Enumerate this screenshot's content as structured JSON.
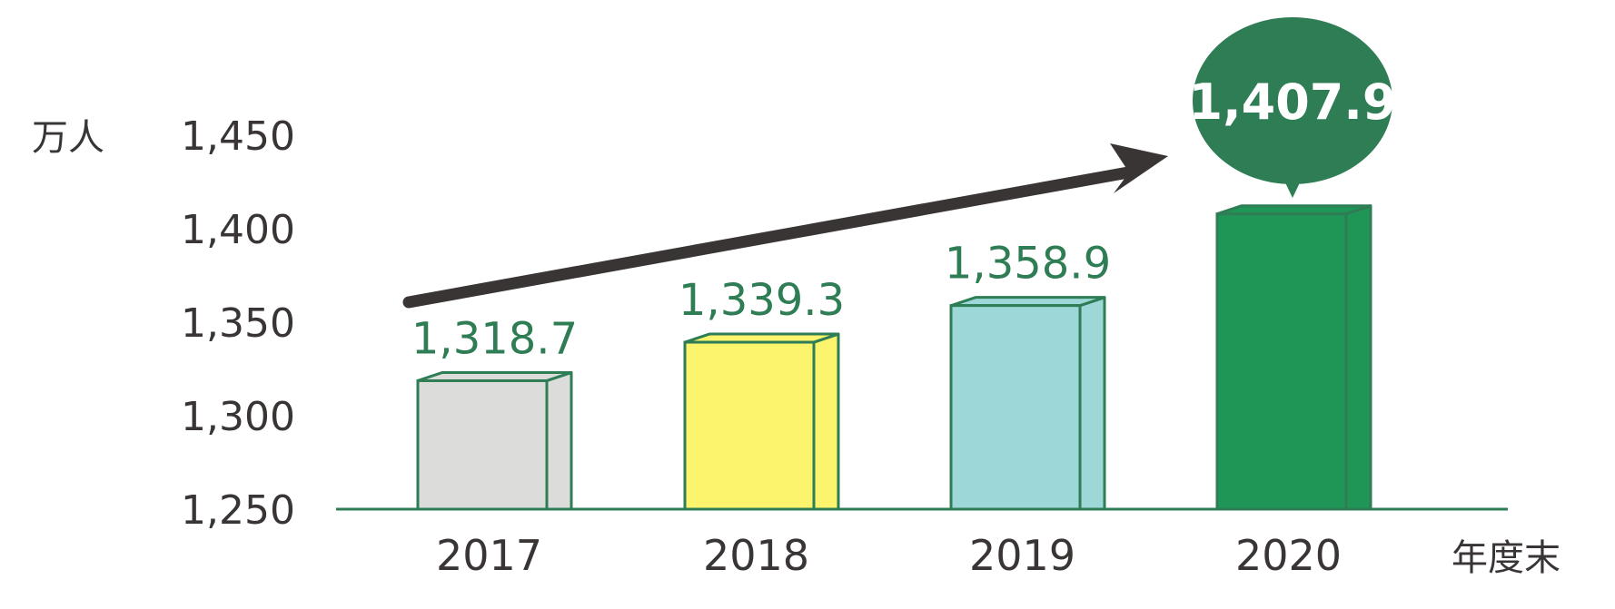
{
  "chart_data": {
    "type": "bar",
    "categories": [
      "2017",
      "2018",
      "2019",
      "2020"
    ],
    "values": [
      1318.7,
      1339.3,
      1358.9,
      1407.9
    ],
    "value_labels": [
      "1,318.7",
      "1,339.3",
      "1,358.9",
      "1,407.9"
    ],
    "y_unit": "万人",
    "x_unit": "年度末",
    "yticks": [
      "1,250",
      "1,300",
      "1,350",
      "1,400",
      "1,450"
    ],
    "ylim": [
      1250,
      1450
    ],
    "grid": false,
    "bar_colors": [
      "#dcdddb",
      "#fdf46e",
      "#9dd7d8",
      "#1f9556"
    ],
    "edge_color": "#2e7d55",
    "callout_color": "#2e7d55",
    "arrow_color": "#3a3535",
    "highlight_index": 3
  }
}
